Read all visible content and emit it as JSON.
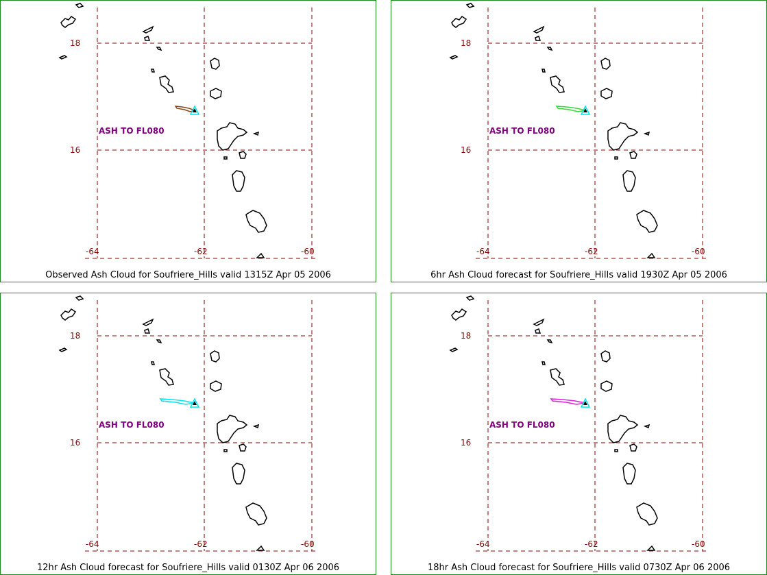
{
  "grid": {
    "lat_labels": [
      "18",
      "16"
    ],
    "lon_labels": [
      "-64",
      "-62",
      "-60"
    ],
    "line_color": "#8b0000"
  },
  "ash_label": "ASH TO FL080",
  "volcano_color": "#00e5ee",
  "panels": [
    {
      "caption": "Observed Ash Cloud for Soufriere_Hills valid 1315Z Apr 05 2006",
      "ash_color": "#8b4513",
      "ash_extent_level": 1
    },
    {
      "caption": "6hr Ash Cloud forecast for Soufriere_Hills valid 1930Z Apr 05 2006",
      "ash_color": "#32dc32",
      "ash_extent_level": 2
    },
    {
      "caption": "12hr Ash Cloud forecast for Soufriere_Hills valid 0130Z Apr 06 2006",
      "ash_color": "#00e5ee",
      "ash_extent_level": 3
    },
    {
      "caption": "18hr Ash Cloud forecast for Soufriere_Hills valid 0730Z Apr 06 2006",
      "ash_color": "#e020e0",
      "ash_extent_level": 3
    }
  ]
}
